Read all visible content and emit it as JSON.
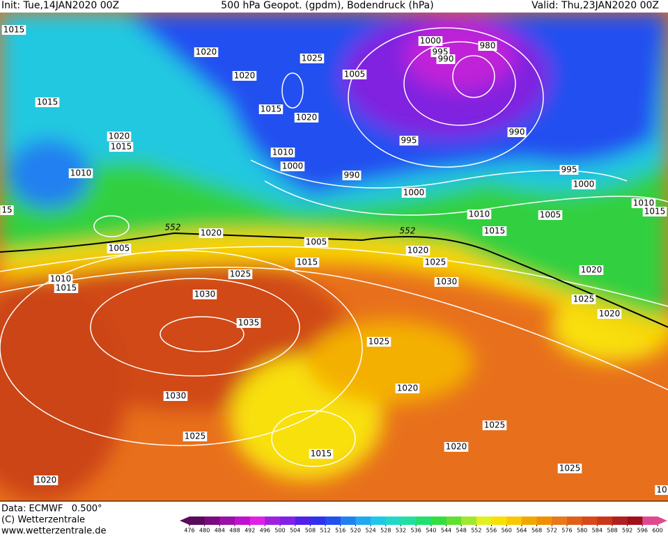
{
  "header": {
    "init": "Init: Tue,14JAN2020 00Z",
    "title": "500 hPa Geopot. (gpdm), Bodendruck (hPa)",
    "valid": "Valid: Thu,23JAN2020 00Z"
  },
  "map": {
    "labels": [
      "1015",
      "1020",
      "1025",
      "1020",
      "1015",
      "1015",
      "1020",
      "1020",
      "1015",
      "1010",
      "1000",
      "1010",
      "990",
      "1005",
      "1000",
      "995",
      "990",
      "980",
      "990",
      "995",
      "995",
      "1000",
      "1000",
      "1010",
      "1015",
      "1005",
      "1010",
      "1015",
      "1020",
      "552",
      "552",
      "1005",
      "1005",
      "1020",
      "1015",
      "1025",
      "1025",
      "1010",
      "1015",
      "1030",
      "1030",
      "1020",
      "1025",
      "1020",
      "1035",
      "1025",
      "1020",
      "1030",
      "1025",
      "1025",
      "1020",
      "1015",
      "1025",
      "1020",
      "15",
      "10"
    ]
  },
  "colorbar": {
    "labels": [
      476,
      480,
      484,
      488,
      492,
      496,
      500,
      504,
      508,
      512,
      516,
      520,
      524,
      528,
      532,
      536,
      540,
      544,
      548,
      552,
      556,
      560,
      564,
      568,
      572,
      576,
      580,
      584,
      588,
      592,
      596,
      600
    ],
    "colors": [
      "#5a0a5a",
      "#7a0a80",
      "#9a10a8",
      "#c010d0",
      "#e020e8",
      "#a020e0",
      "#8020e8",
      "#5020e8",
      "#3030f0",
      "#2050f0",
      "#2080f0",
      "#20a8f0",
      "#20c8e8",
      "#20d8c8",
      "#20e0a0",
      "#20e070",
      "#30e040",
      "#60e030",
      "#a0e830",
      "#e0f020",
      "#f8e000",
      "#f8c800",
      "#f0a800",
      "#f09000",
      "#e87818",
      "#e06018",
      "#d84818",
      "#c83818",
      "#b02020",
      "#a01018",
      "#e04890"
    ]
  },
  "footer": {
    "source": "Data: ECMWF   0.500°",
    "copyright": "(C) Wetterzentrale",
    "url": "www.wetterzentrale.de"
  }
}
